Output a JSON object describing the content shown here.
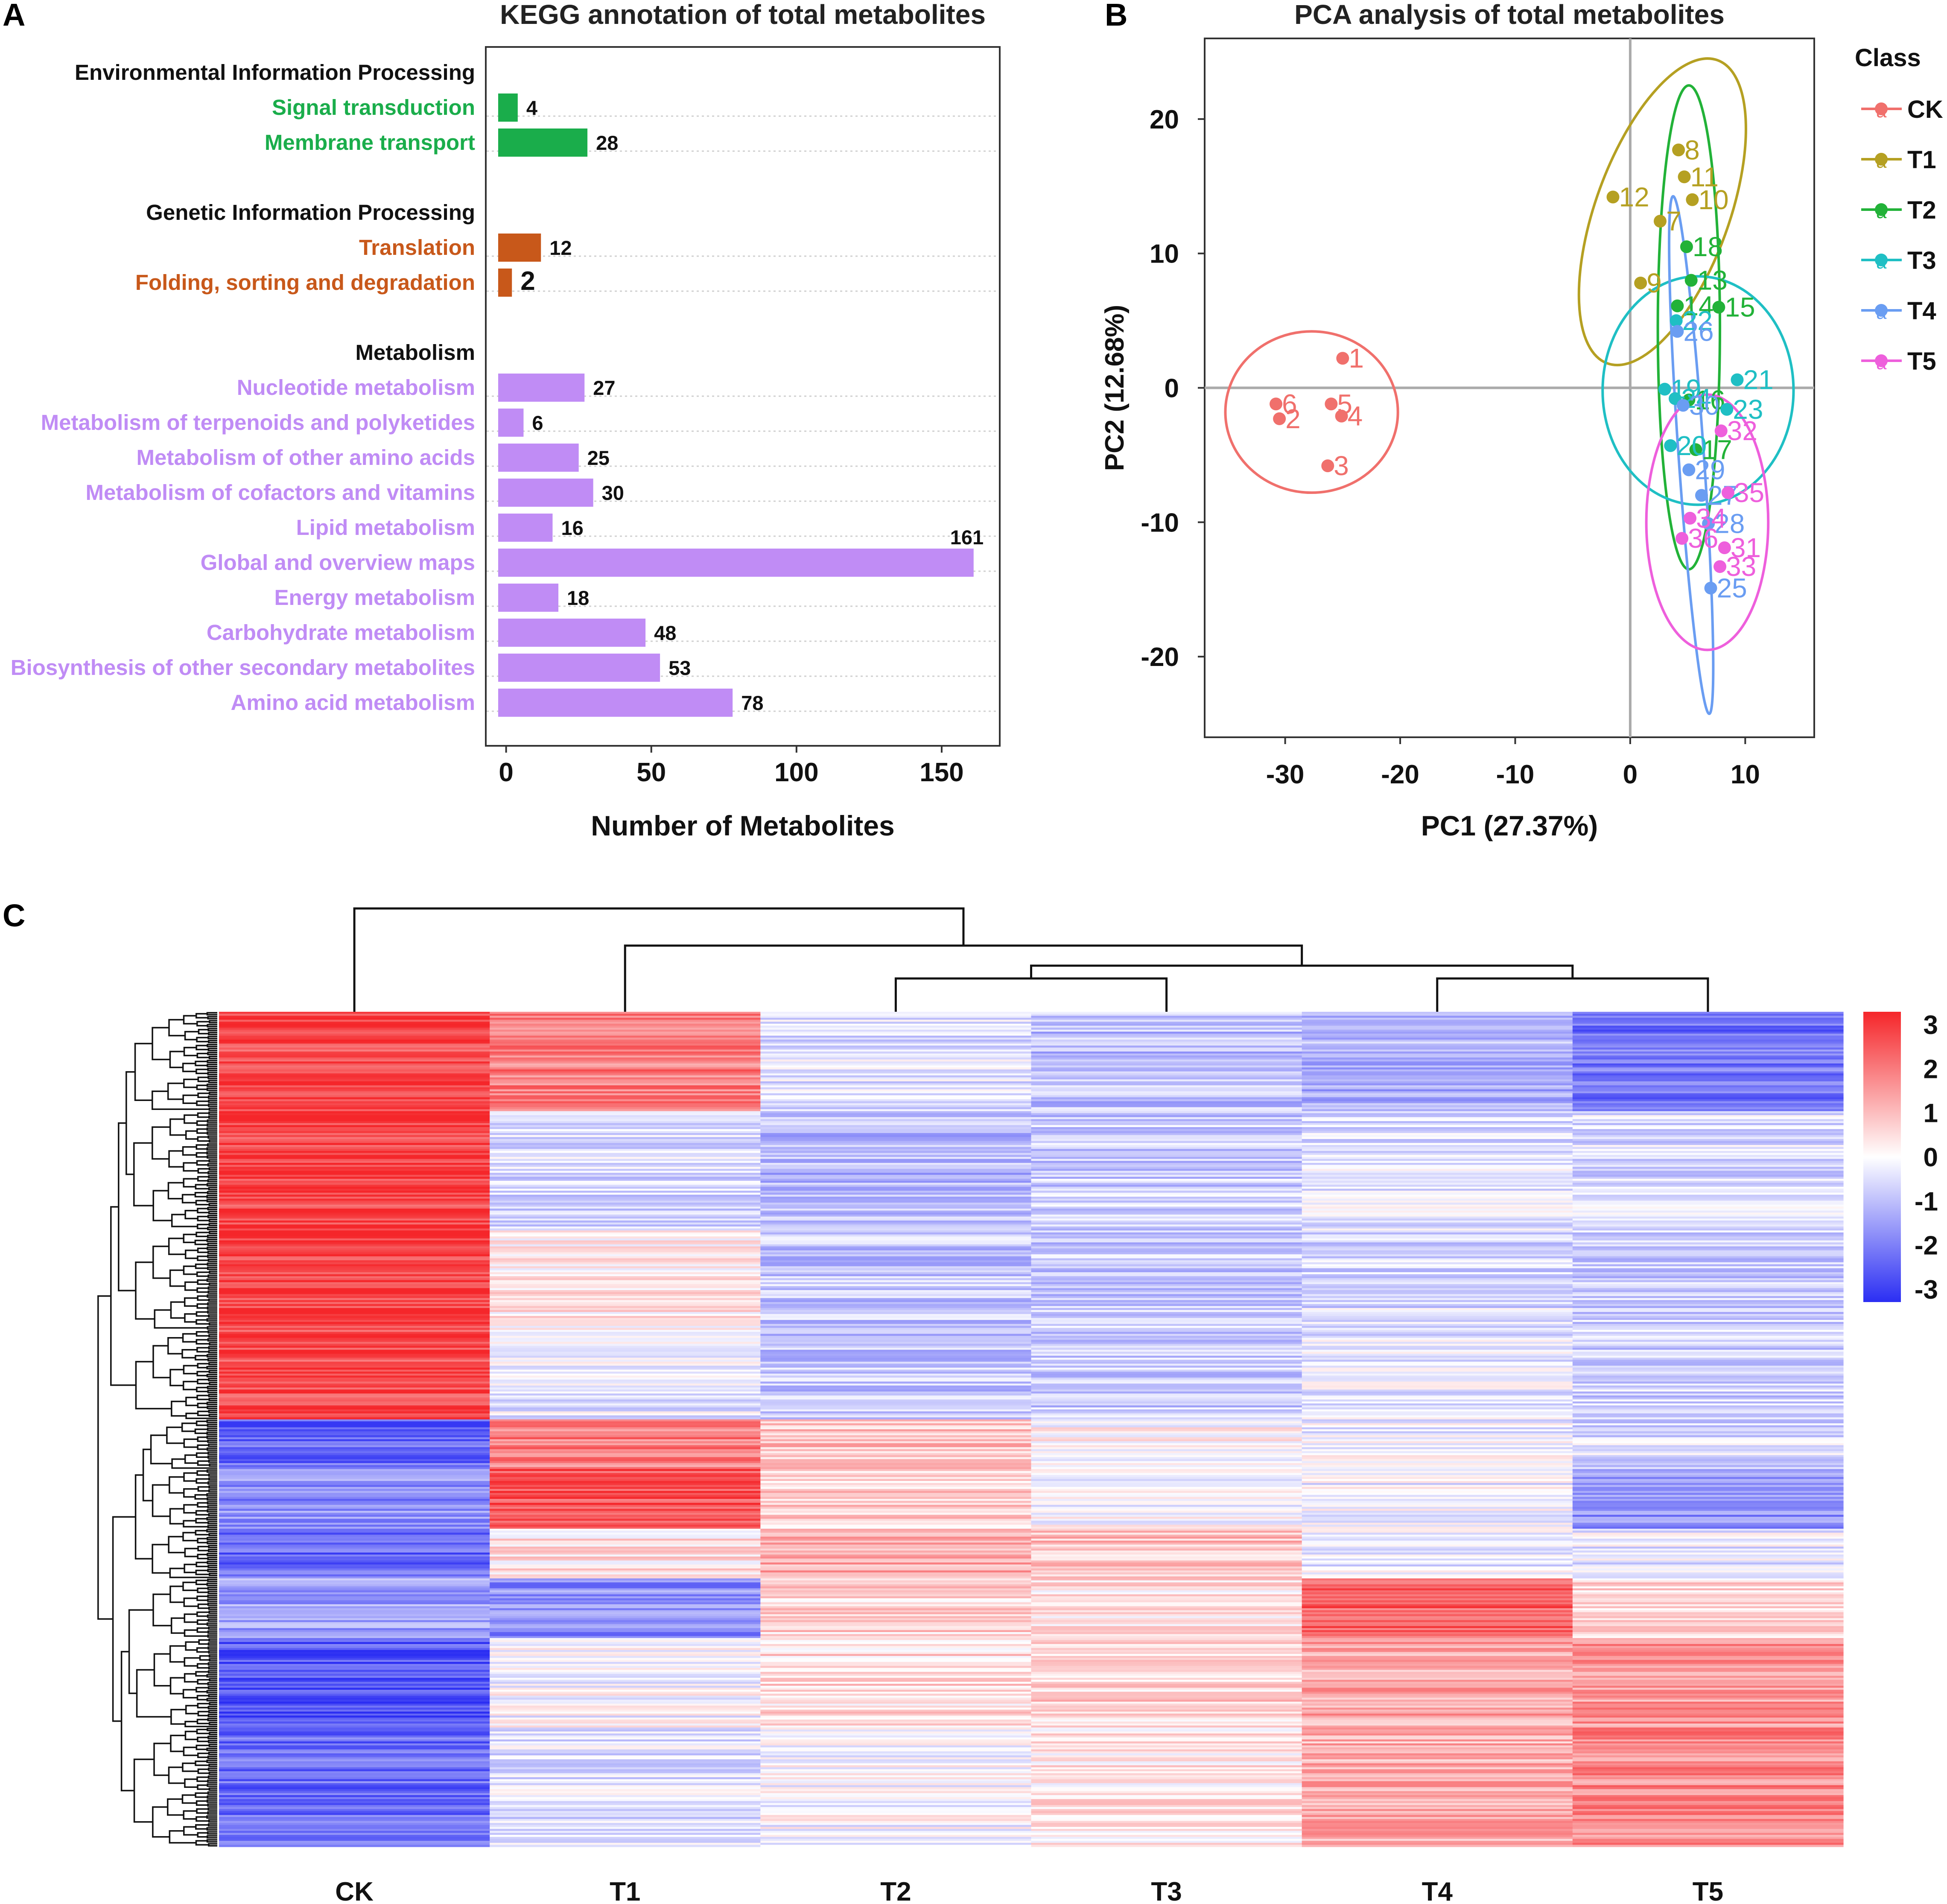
{
  "colors": {
    "green": "#1aad4b",
    "orange": "#c8581a",
    "purple": "#c08cf5",
    "ck": "#f0706c",
    "t1": "#b5a022",
    "t2": "#22b238",
    "t3": "#1fbfc4",
    "t4": "#6a9df2",
    "t5": "#ee5fdc",
    "heat_low": "#2b2ef3",
    "heat_mid": "#ffffff",
    "heat_high": "#f5262a"
  },
  "panel_a": {
    "letter": "A",
    "groups": [
      {
        "name": "Environmental Information Processing",
        "color_key": "green",
        "items": [
          "Signal transduction",
          "Membrane transport"
        ]
      },
      {
        "name": "Genetic Information Processing",
        "color_key": "orange",
        "items": [
          "Translation",
          "Folding, sorting and degradation"
        ]
      },
      {
        "name": "Metabolism",
        "color_key": "purple",
        "items": [
          "Nucleotide metabolism",
          "Metabolism of terpenoids and polyketides",
          "Metabolism of other amino acids",
          "Metabolism of cofactors and vitamins",
          "Lipid metabolism",
          "Global and overview maps",
          "Energy metabolism",
          "Carbohydrate metabolism",
          "Biosynthesis of other secondary metabolites",
          "Amino acid metabolism"
        ]
      }
    ]
  },
  "panel_b": {
    "letter": "B",
    "legend_title": "Class",
    "legend_glyph": "a"
  },
  "panel_c": {
    "letter": "C",
    "scale_ticks": [
      "3",
      "2",
      "1",
      "0",
      "-1",
      "-2",
      "-3"
    ]
  },
  "chart_data": [
    {
      "type": "bar",
      "orientation": "horizontal",
      "title": "KEGG annotation of total metabolites",
      "xlabel": "Number of Metabolites",
      "ylabel": "",
      "xlim": [
        -7,
        170
      ],
      "xticks": [
        0,
        50,
        100,
        150
      ],
      "grid": "dotted horizontal guide lines",
      "categories": [
        "Signal transduction",
        "Membrane transport",
        "Translation",
        "Folding, sorting and degradation",
        "Nucleotide metabolism",
        "Metabolism of terpenoids and polyketides",
        "Metabolism of other amino acids",
        "Metabolism of cofactors and vitamins",
        "Lipid metabolism",
        "Global and overview maps",
        "Energy metabolism",
        "Carbohydrate metabolism",
        "Biosynthesis of other secondary metabolites",
        "Amino acid metabolism"
      ],
      "values": [
        4,
        28,
        12,
        2,
        27,
        6,
        25,
        30,
        16,
        161,
        18,
        48,
        53,
        78
      ]
    },
    {
      "type": "scatter",
      "title": "PCA analysis of total metabolites",
      "xlabel": "PC1 (27.37%)",
      "ylabel": "PC2 (12.68%)",
      "xlim": [
        -37,
        16
      ],
      "ylim": [
        -26,
        26
      ],
      "xticks": [
        -30,
        -20,
        -10,
        0,
        10
      ],
      "yticks": [
        20,
        10,
        0,
        -10,
        -20
      ],
      "reference_lines": {
        "x": 0,
        "y": 0
      },
      "legend_position": "right",
      "series": [
        {
          "name": "CK",
          "color_key": "ck",
          "points": [
            {
              "x": -25.0,
              "y": 2.2,
              "label": "1"
            },
            {
              "x": -30.5,
              "y": -2.3,
              "label": "2"
            },
            {
              "x": -26.3,
              "y": -5.8,
              "label": "3"
            },
            {
              "x": -25.1,
              "y": -2.1,
              "label": "4"
            },
            {
              "x": -26.0,
              "y": -1.2,
              "label": "5"
            },
            {
              "x": -30.8,
              "y": -1.2,
              "label": "6"
            }
          ],
          "ellipse": {
            "cx": -27.7,
            "cy": -1.8,
            "rx": 7.5,
            "ry": 6.0,
            "angle_deg": 0
          }
        },
        {
          "name": "T1",
          "color_key": "t1",
          "points": [
            {
              "x": 2.6,
              "y": 12.4,
              "label": "7"
            },
            {
              "x": 4.2,
              "y": 17.7,
              "label": "8"
            },
            {
              "x": 0.9,
              "y": 7.8,
              "label": "9"
            },
            {
              "x": 5.4,
              "y": 14.0,
              "label": "10"
            },
            {
              "x": 4.7,
              "y": 15.7,
              "label": "11"
            },
            {
              "x": -1.5,
              "y": 14.2,
              "label": "12"
            }
          ],
          "ellipse": {
            "cx": 2.8,
            "cy": 13.1,
            "rx": 5.8,
            "ry": 12.0,
            "angle_deg": 20
          }
        },
        {
          "name": "T2",
          "color_key": "t2",
          "points": [
            {
              "x": 5.3,
              "y": 8.0,
              "label": "13"
            },
            {
              "x": 4.1,
              "y": 6.1,
              "label": "14"
            },
            {
              "x": 7.7,
              "y": 6.0,
              "label": "15"
            },
            {
              "x": 5.1,
              "y": -0.9,
              "label": "16"
            },
            {
              "x": 5.7,
              "y": -4.6,
              "label": "17"
            },
            {
              "x": 4.9,
              "y": 10.5,
              "label": "18"
            }
          ],
          "ellipse": {
            "cx": 5.1,
            "cy": 4.5,
            "rx": 2.7,
            "ry": 18.0,
            "angle_deg": 0
          }
        },
        {
          "name": "T3",
          "color_key": "t3",
          "points": [
            {
              "x": 3.0,
              "y": -0.1,
              "label": "19"
            },
            {
              "x": 3.5,
              "y": -4.3,
              "label": "20"
            },
            {
              "x": 9.3,
              "y": 0.6,
              "label": "21"
            },
            {
              "x": 4.0,
              "y": 5.0,
              "label": "22"
            },
            {
              "x": 8.4,
              "y": -1.6,
              "label": "23"
            },
            {
              "x": 3.9,
              "y": -0.8,
              "label": "24"
            }
          ],
          "ellipse": {
            "cx": 5.9,
            "cy": -0.2,
            "rx": 8.3,
            "ry": 8.5,
            "angle_deg": 0
          }
        },
        {
          "name": "T4",
          "color_key": "t4",
          "points": [
            {
              "x": 6.2,
              "y": -8.0,
              "label": "27"
            },
            {
              "x": 6.8,
              "y": -10.1,
              "label": "28"
            },
            {
              "x": 5.1,
              "y": -6.1,
              "label": "29"
            },
            {
              "x": 4.6,
              "y": -1.3,
              "label": "30"
            },
            {
              "x": 7.0,
              "y": -14.9,
              "label": "25"
            },
            {
              "x": 4.1,
              "y": 4.2,
              "label": "26"
            }
          ],
          "ellipse": {
            "cx": 5.3,
            "cy": -5.0,
            "rx": 1.1,
            "ry": 19.3,
            "angle_deg": -4
          }
        },
        {
          "name": "T5",
          "color_key": "t5",
          "points": [
            {
              "x": 8.2,
              "y": -11.9,
              "label": "31"
            },
            {
              "x": 7.9,
              "y": -3.2,
              "label": "32"
            },
            {
              "x": 7.8,
              "y": -13.3,
              "label": "33"
            },
            {
              "x": 5.2,
              "y": -9.7,
              "label": "34"
            },
            {
              "x": 8.5,
              "y": -7.8,
              "label": "35"
            },
            {
              "x": 4.5,
              "y": -11.2,
              "label": "36"
            }
          ],
          "ellipse": {
            "cx": 6.7,
            "cy": -10.0,
            "rx": 5.3,
            "ry": 9.5,
            "angle_deg": 0
          }
        }
      ]
    },
    {
      "type": "heatmap",
      "title": "",
      "xlabel": "",
      "ylabel": "",
      "columns": [
        "CK",
        "T1",
        "T2",
        "T3",
        "T4",
        "T5"
      ],
      "color_scale": {
        "min": -3,
        "max": 3,
        "palette": [
          "#2b2ef3",
          "#ffffff",
          "#f5262a"
        ]
      },
      "column_dendrogram": "((CK),((T1),((T2,T3),(T4,T5))))",
      "row_blocks": [
        {
          "rows": 50,
          "values": [
            2.5,
            1.8,
            -0.4,
            -0.9,
            -1.1,
            -2.0
          ]
        },
        {
          "rows": 60,
          "values": [
            2.6,
            -0.5,
            -1.0,
            -0.7,
            -0.4,
            -0.5
          ]
        },
        {
          "rows": 50,
          "values": [
            2.6,
            0.3,
            -0.8,
            -0.7,
            -0.5,
            -0.7
          ]
        },
        {
          "rows": 45,
          "values": [
            2.5,
            -0.3,
            -0.8,
            -0.7,
            -0.3,
            -0.6
          ]
        },
        {
          "rows": 25,
          "values": [
            -2.2,
            1.8,
            0.8,
            0.1,
            -0.2,
            -0.5
          ]
        },
        {
          "rows": 30,
          "values": [
            -1.6,
            2.4,
            0.6,
            0.0,
            -0.2,
            -1.5
          ]
        },
        {
          "rows": 25,
          "values": [
            -2.2,
            0.4,
            1.2,
            0.8,
            -0.3,
            -0.3
          ]
        },
        {
          "rows": 30,
          "values": [
            -1.3,
            -1.6,
            0.6,
            0.4,
            2.2,
            0.6
          ]
        },
        {
          "rows": 45,
          "values": [
            -2.4,
            -0.1,
            0.5,
            0.6,
            1.2,
            1.4
          ]
        },
        {
          "rows": 60,
          "values": [
            -2.1,
            -0.4,
            -0.1,
            0.3,
            1.1,
            1.6
          ]
        }
      ]
    }
  ]
}
